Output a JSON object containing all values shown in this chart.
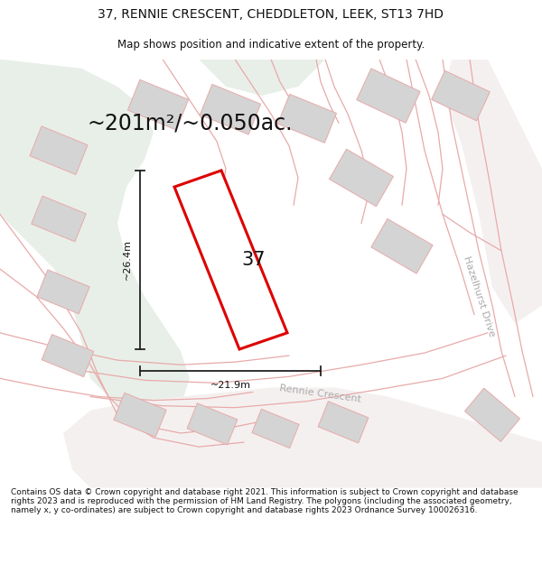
{
  "title": "37, RENNIE CRESCENT, CHEDDLETON, LEEK, ST13 7HD",
  "subtitle": "Map shows position and indicative extent of the property.",
  "area_text": "~201m²/~0.050ac.",
  "dim_vertical": "~26.4m",
  "dim_horizontal": "~21.9m",
  "label_37": "37",
  "road_label1": "Rennie Crescent",
  "road_label2": "Hazelhurst Drive",
  "footer": "Contains OS data © Crown copyright and database right 2021. This information is subject to Crown copyright and database rights 2023 and is reproduced with the permission of HM Land Registry. The polygons (including the associated geometry, namely x, y co-ordinates) are subject to Crown copyright and database rights 2023 Ordnance Survey 100026316.",
  "bg_color": "#ffffff",
  "map_bg": "#f0f0ee",
  "green_area": "#e8efe8",
  "plot_fill": "#ffffff",
  "plot_edge_color": "#dd0000",
  "neighbor_fill": "#d4d4d4",
  "neighbor_edge": "#e8aaaa",
  "road_line_color": "#e8aaaa",
  "road_fill": "#f5f0f0",
  "dim_line_color": "#222222",
  "title_fontsize": 10,
  "subtitle_fontsize": 8.5,
  "area_fontsize": 17,
  "label_fontsize": 15,
  "road_fontsize": 8,
  "dim_fontsize": 8,
  "footer_fontsize": 6.5
}
